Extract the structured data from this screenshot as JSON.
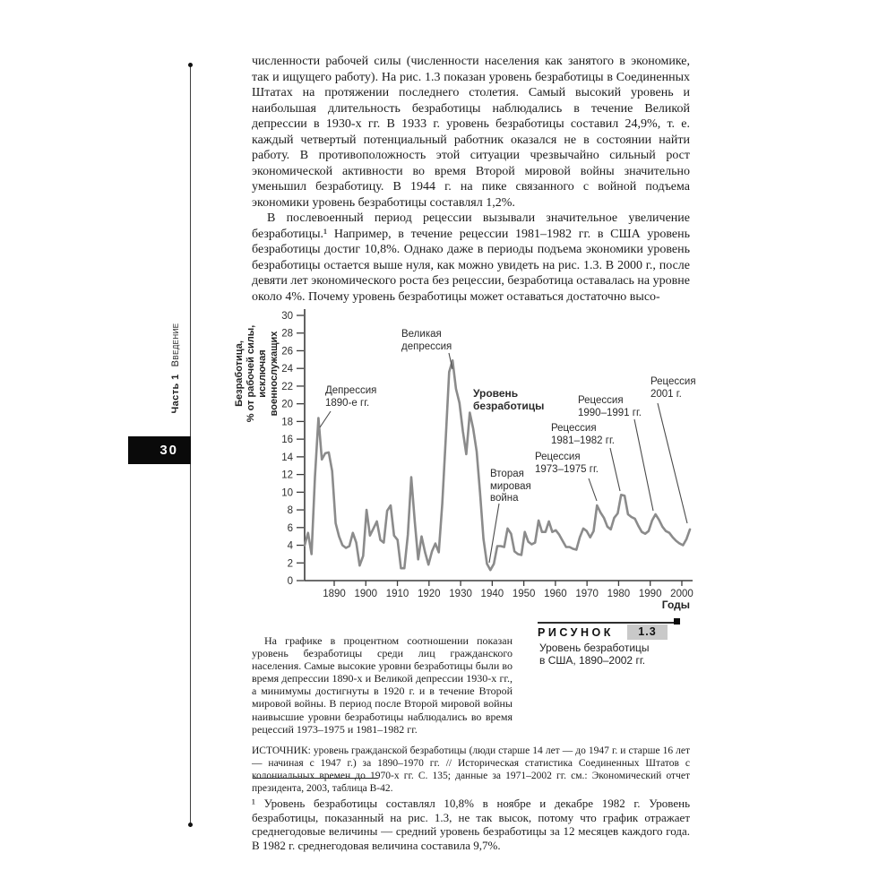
{
  "sidebar": {
    "part_label": "Часть 1",
    "part_title": "Введение",
    "page_number": "30"
  },
  "main_text": {
    "paragraph_1": "численности рабочей силы (численности населения как занятого в экономике, так и ищущего работу). На рис. 1.3 показан уровень безработицы в Соединенных Штатах на протяжении последнего столетия. Самый высокий уровень и наибольшая длительность безработицы наблюдались в течение Великой депрессии в 1930-х гг. В 1933 г. уровень безработицы составил 24,9%, т. е. каждый четвертый потенциальный работник оказался не в состоянии найти работу. В противоположность этой ситуации чрезвычайно сильный рост экономической активности во время Второй мировой войны значительно уменьшил безработицу. В 1944 г. на пике связанного с войной подъема экономики уровень безработицы составлял 1,2%.",
    "paragraph_2": "В послевоенный период рецессии вызывали значительное увеличение безработицы.¹ Например, в течение рецессии 1981–1982 гг. в США уровень безработицы достиг 10,8%. Однако даже в периоды подъема экономики уровень безработицы остается выше нуля, как можно увидеть на рис. 1.3. В 2000 г., после девяти лет экономического роста без рецессии, безработица оставалась на уровне около 4%. Почему уровень безработицы может оставаться достаточно высо-"
  },
  "figure": {
    "label": "РИСУНОК",
    "number": "1.3",
    "title_lines": [
      "Уровень безработицы",
      "в США, 1890–2002 гг."
    ],
    "caption_text": "На графике в процентном соотношении показан уровень безработицы среди лиц гражданского населения. Самые высокие уровни безработицы были во время депрессии 1890-х и Великой депрессии 1930-х гг., а минимумы достигнуты в 1920 г. и в течение Второй мировой войны. В период после Второй мировой войны наивысшие уровни безработицы наблюдались во время рецессий 1973–1975 и 1981–1982 гг.",
    "source": "ИСТОЧНИК: уровень гражданской безработицы (люди старше 14 лет — до 1947 г. и старше 16 лет — начиная с 1947 г.) за 1890–1970 гг. // Историческая статистика Соединенных Штатов с колониальных времен до 1970-х гг. С. 135; данные за 1971–2002 гг. см.: Экономический отчет президента, 2003, таблица В-42."
  },
  "footnote": "¹ Уровень безработицы составлял 10,8% в ноябре и декабре 1982 г. Уровень безработицы, показанный на рис. 1.3, не так высок, потому что график отражает среднегодовые величины — средний уровень безработицы за 12 месяцев каждого года. В 1982 г. среднегодовая величина составила 9,7%.",
  "chart_data": {
    "type": "line",
    "ylabel_lines": [
      "Безработица,",
      "% от рабочей силы,",
      "исключая военнослужащих"
    ],
    "xlabel": "Годы",
    "ylim": [
      0,
      30
    ],
    "ytick_step": 2,
    "xticks": [
      1890,
      1900,
      1910,
      1920,
      1930,
      1940,
      1950,
      1960,
      1970,
      1980,
      1990,
      2000
    ],
    "grid": false,
    "line_color": "#8b8b8b",
    "axis_color": "#3c3c3c",
    "series": [
      {
        "name": "Уровень безработицы",
        "points": [
          [
            1890,
            4.0
          ],
          [
            1891,
            5.4
          ],
          [
            1892,
            3.0
          ],
          [
            1893,
            11.7
          ],
          [
            1894,
            18.4
          ],
          [
            1895,
            13.7
          ],
          [
            1896,
            14.4
          ],
          [
            1897,
            14.5
          ],
          [
            1898,
            12.4
          ],
          [
            1899,
            6.5
          ],
          [
            1900,
            5.0
          ],
          [
            1901,
            4.0
          ],
          [
            1902,
            3.7
          ],
          [
            1903,
            3.9
          ],
          [
            1904,
            5.4
          ],
          [
            1905,
            4.3
          ],
          [
            1906,
            1.7
          ],
          [
            1907,
            2.8
          ],
          [
            1908,
            8.0
          ],
          [
            1909,
            5.1
          ],
          [
            1910,
            5.9
          ],
          [
            1911,
            6.7
          ],
          [
            1912,
            4.6
          ],
          [
            1913,
            4.3
          ],
          [
            1914,
            7.9
          ],
          [
            1915,
            8.5
          ],
          [
            1916,
            5.1
          ],
          [
            1917,
            4.6
          ],
          [
            1918,
            1.4
          ],
          [
            1919,
            1.4
          ],
          [
            1920,
            5.2
          ],
          [
            1921,
            11.7
          ],
          [
            1922,
            6.7
          ],
          [
            1923,
            2.4
          ],
          [
            1924,
            5.0
          ],
          [
            1925,
            3.2
          ],
          [
            1926,
            1.8
          ],
          [
            1927,
            3.3
          ],
          [
            1928,
            4.2
          ],
          [
            1929,
            3.2
          ],
          [
            1930,
            8.7
          ],
          [
            1931,
            15.9
          ],
          [
            1932,
            23.6
          ],
          [
            1933,
            24.9
          ],
          [
            1934,
            21.7
          ],
          [
            1935,
            20.1
          ],
          [
            1936,
            16.9
          ],
          [
            1937,
            14.3
          ],
          [
            1938,
            19.0
          ],
          [
            1939,
            17.2
          ],
          [
            1940,
            14.6
          ],
          [
            1941,
            9.9
          ],
          [
            1942,
            4.7
          ],
          [
            1943,
            1.9
          ],
          [
            1944,
            1.2
          ],
          [
            1945,
            1.9
          ],
          [
            1946,
            3.9
          ],
          [
            1947,
            3.9
          ],
          [
            1948,
            3.8
          ],
          [
            1949,
            5.9
          ],
          [
            1950,
            5.3
          ],
          [
            1951,
            3.3
          ],
          [
            1952,
            3.0
          ],
          [
            1953,
            2.9
          ],
          [
            1954,
            5.5
          ],
          [
            1955,
            4.4
          ],
          [
            1956,
            4.1
          ],
          [
            1957,
            4.3
          ],
          [
            1958,
            6.8
          ],
          [
            1959,
            5.5
          ],
          [
            1960,
            5.5
          ],
          [
            1961,
            6.7
          ],
          [
            1962,
            5.5
          ],
          [
            1963,
            5.7
          ],
          [
            1964,
            5.2
          ],
          [
            1965,
            4.5
          ],
          [
            1966,
            3.8
          ],
          [
            1967,
            3.8
          ],
          [
            1968,
            3.6
          ],
          [
            1969,
            3.5
          ],
          [
            1970,
            4.9
          ],
          [
            1971,
            5.9
          ],
          [
            1972,
            5.6
          ],
          [
            1973,
            4.9
          ],
          [
            1974,
            5.6
          ],
          [
            1975,
            8.5
          ],
          [
            1976,
            7.7
          ],
          [
            1977,
            7.1
          ],
          [
            1978,
            6.1
          ],
          [
            1979,
            5.8
          ],
          [
            1980,
            7.1
          ],
          [
            1981,
            7.6
          ],
          [
            1982,
            9.7
          ],
          [
            1983,
            9.6
          ],
          [
            1984,
            7.5
          ],
          [
            1985,
            7.2
          ],
          [
            1986,
            7.0
          ],
          [
            1987,
            6.2
          ],
          [
            1988,
            5.5
          ],
          [
            1989,
            5.3
          ],
          [
            1990,
            5.6
          ],
          [
            1991,
            6.8
          ],
          [
            1992,
            7.5
          ],
          [
            1993,
            6.9
          ],
          [
            1994,
            6.1
          ],
          [
            1995,
            5.6
          ],
          [
            1996,
            5.4
          ],
          [
            1997,
            4.9
          ],
          [
            1998,
            4.5
          ],
          [
            1999,
            4.2
          ],
          [
            2000,
            4.0
          ],
          [
            2001,
            4.7
          ],
          [
            2002,
            5.8
          ]
        ]
      }
    ],
    "annotations": [
      {
        "id": "depression-1890s",
        "lines": [
          "Депрессия",
          "1890-е гг."
        ]
      },
      {
        "id": "great-depression",
        "lines": [
          "Великая",
          "депрессия"
        ]
      },
      {
        "id": "series-label",
        "lines": [
          "Уровень",
          "безработицы"
        ]
      },
      {
        "id": "wwii",
        "lines": [
          "Вторая",
          "мировая",
          "война"
        ]
      },
      {
        "id": "recession-1973-1975",
        "lines": [
          "Рецессия",
          "1973–1975 гг."
        ]
      },
      {
        "id": "recession-1981-1982",
        "lines": [
          "Рецессия",
          "1981–1982 гг."
        ]
      },
      {
        "id": "recession-1990-1991",
        "lines": [
          "Рецессия",
          "1990–1991 гг."
        ]
      },
      {
        "id": "recession-2001",
        "lines": [
          "Рецессия",
          "2001 г."
        ]
      }
    ]
  }
}
